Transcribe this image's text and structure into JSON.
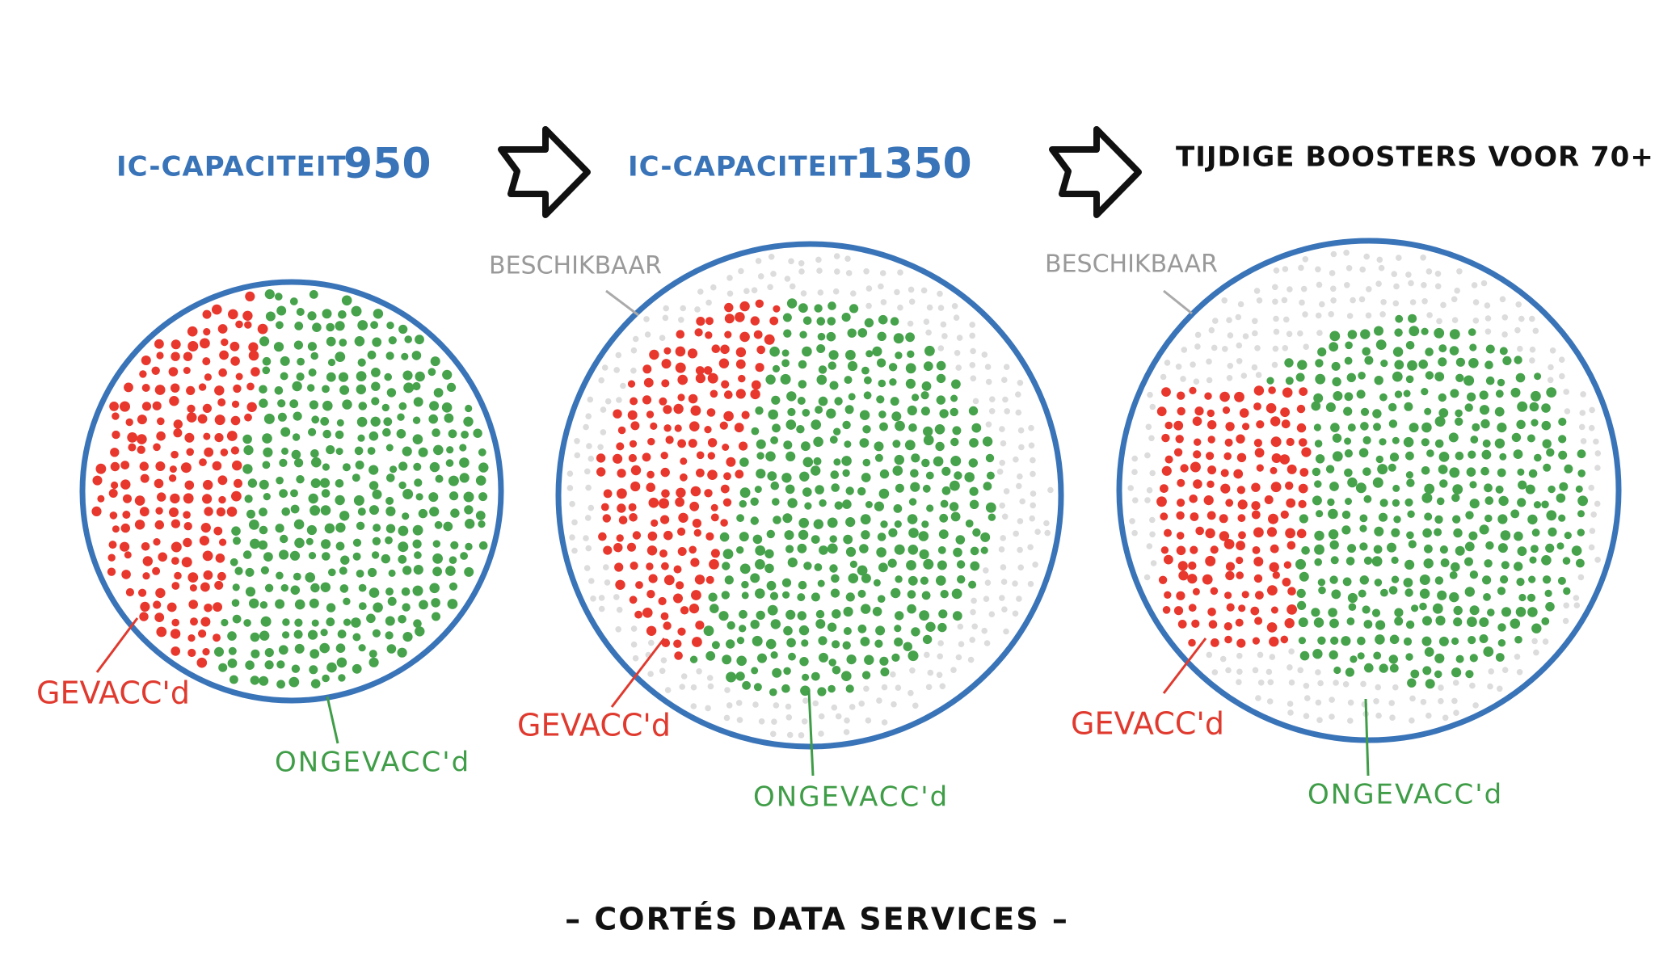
{
  "headings": [
    {
      "text": "IC-CAPACITEIT",
      "value": 950
    },
    {
      "text": "IC-CAPACITEIT",
      "value": 1350
    },
    {
      "text": "TIJDIGE BOOSTERS VOOR 70+"
    }
  ],
  "panels": [
    {
      "vaccinated_label": "GEVACC'd",
      "unvaccinated_label": "ONGEVACC'd"
    },
    {
      "available_label": "BESCHIKBAAR",
      "vaccinated_label": "GEVACC'd",
      "unvaccinated_label": "ONGEVACC'd"
    },
    {
      "available_label": "BESCHIKBAAR",
      "vaccinated_label": "GEVACC'd",
      "unvaccinated_label": "ONGEVACC'd"
    }
  ],
  "footer": "– CORTÉS DATA SERVICES –"
}
